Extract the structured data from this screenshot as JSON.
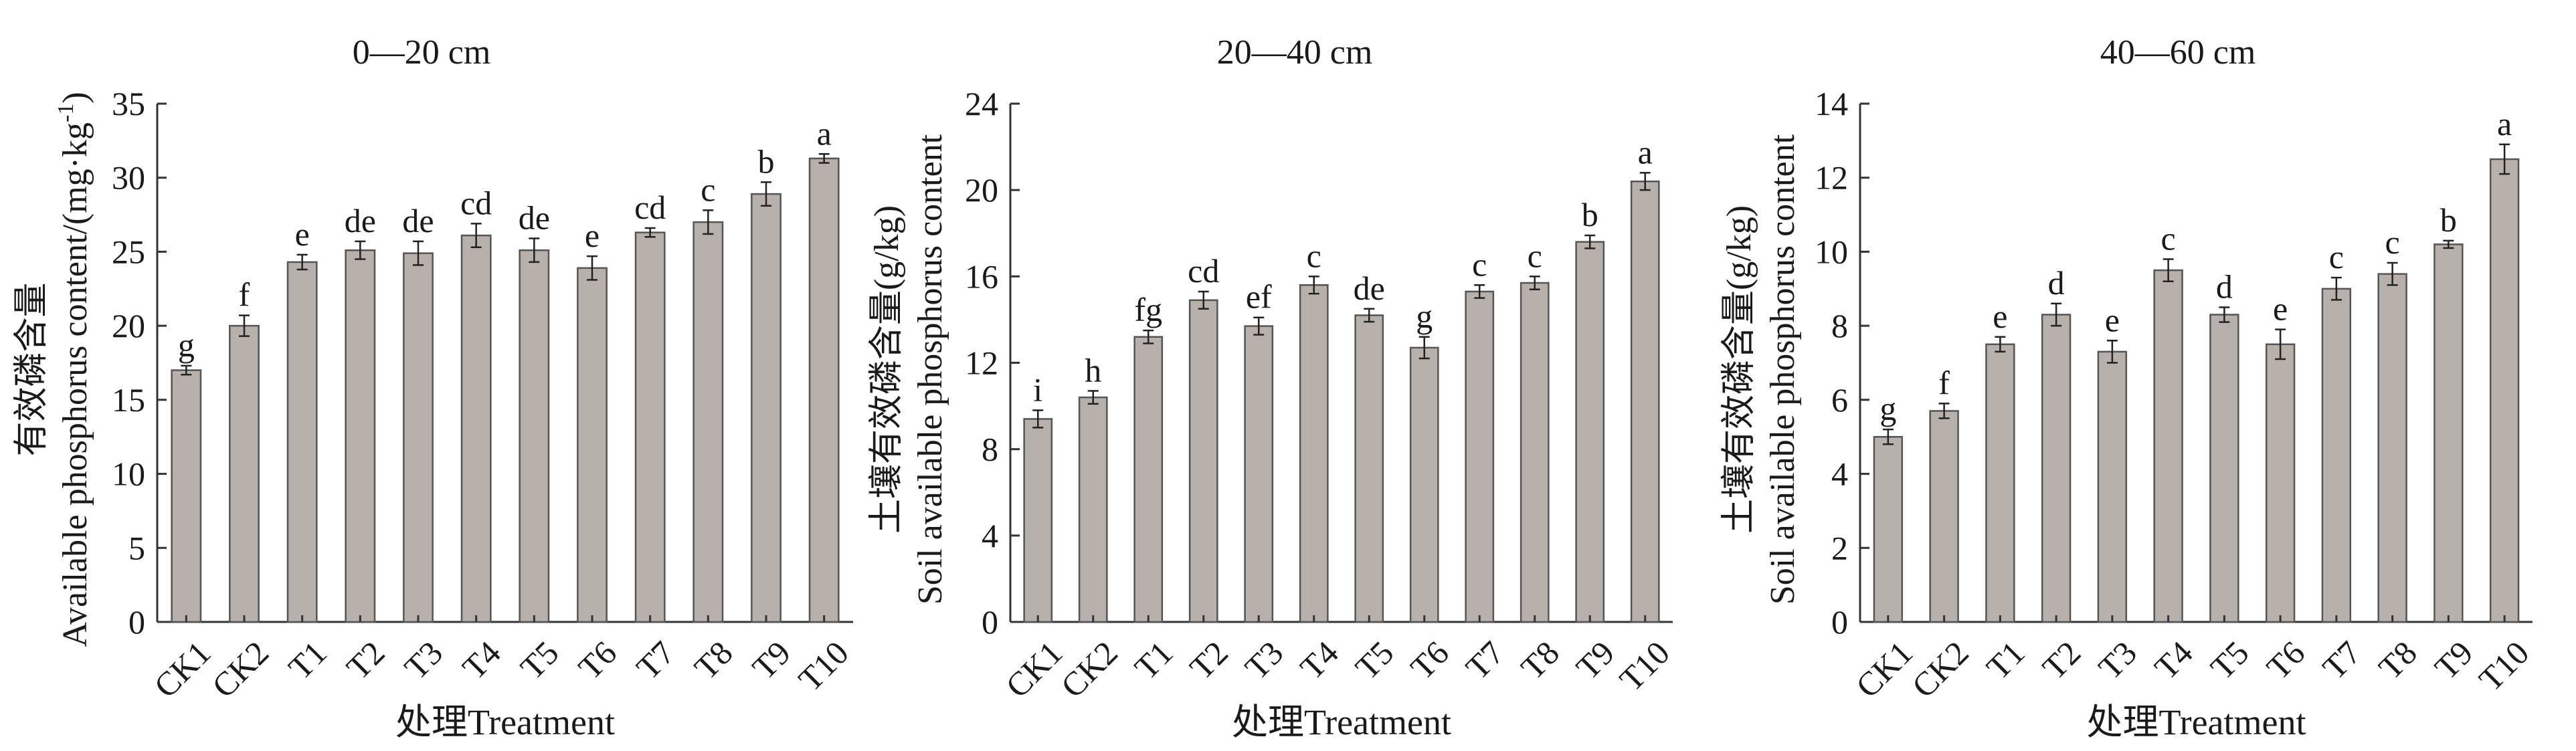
{
  "chart_data": [
    {
      "type": "bar",
      "title": "0—20 cm",
      "xlabel": "处理Treatment",
      "ylabel_cn": "有效磷含量",
      "ylabel_en": "Available phosphorus content/(mg·kg",
      "ylabel_sup": "-1",
      "ylabel_end": ")",
      "categories": [
        "CK1",
        "CK2",
        "T1",
        "T2",
        "T3",
        "T4",
        "T5",
        "T6",
        "T7",
        "T8",
        "T9",
        "T10"
      ],
      "values": [
        17.0,
        20.0,
        24.3,
        25.1,
        24.9,
        26.1,
        25.1,
        23.9,
        26.3,
        27.0,
        28.9,
        31.3
      ],
      "errors": [
        0.3,
        0.7,
        0.5,
        0.6,
        0.8,
        0.8,
        0.8,
        0.8,
        0.3,
        0.8,
        0.8,
        0.3
      ],
      "letters": [
        "g",
        "f",
        "e",
        "de",
        "de",
        "cd",
        "de",
        "e",
        "cd",
        "c",
        "b",
        "a"
      ],
      "ylim": [
        0,
        35
      ],
      "yticks": [
        0,
        5,
        10,
        15,
        20,
        25,
        30,
        35
      ],
      "ytick_labels": [
        "0",
        "5",
        "10",
        "15",
        "20",
        "25",
        "30",
        "35"
      ],
      "grid": false,
      "bar_color": "#b8b0ab"
    },
    {
      "type": "bar",
      "title": "20—40 cm",
      "xlabel": "处理Treatment",
      "ylabel_cn": "土壤有效磷含量(g/kg)",
      "ylabel_en": "Soil available phosphorus content",
      "categories": [
        "CK1",
        "CK2",
        "T1",
        "T2",
        "T3",
        "T4",
        "T5",
        "T6",
        "T7",
        "T8",
        "T9",
        "T10"
      ],
      "values": [
        9.4,
        10.4,
        13.2,
        14.9,
        13.7,
        15.6,
        14.2,
        12.7,
        15.3,
        15.7,
        17.6,
        20.4
      ],
      "errors": [
        0.4,
        0.3,
        0.3,
        0.4,
        0.4,
        0.4,
        0.3,
        0.5,
        0.3,
        0.3,
        0.3,
        0.4
      ],
      "letters": [
        "i",
        "h",
        "fg",
        "cd",
        "ef",
        "c",
        "de",
        "g",
        "c",
        "c",
        "b",
        "a"
      ],
      "ylim": [
        0,
        24
      ],
      "yticks": [
        0,
        4,
        8,
        12,
        16,
        20,
        24
      ],
      "ytick_labels": [
        "0",
        "4",
        "8",
        "12",
        "16",
        "20",
        "24"
      ],
      "grid": false,
      "bar_color": "#b8b0ab"
    },
    {
      "type": "bar",
      "title": "40—60 cm",
      "xlabel": "处理Treatment",
      "ylabel_cn": "土壤有效磷含量(g/kg)",
      "ylabel_en": "Soil available phosphorus content",
      "categories": [
        "CK1",
        "CK2",
        "T1",
        "T2",
        "T3",
        "T4",
        "T5",
        "T6",
        "T7",
        "T8",
        "T9",
        "T10"
      ],
      "values": [
        5.0,
        5.7,
        7.5,
        8.3,
        7.3,
        9.5,
        8.3,
        7.5,
        9.0,
        9.4,
        10.2,
        12.5
      ],
      "errors": [
        0.2,
        0.2,
        0.2,
        0.3,
        0.3,
        0.3,
        0.2,
        0.4,
        0.3,
        0.3,
        0.1,
        0.4
      ],
      "letters": [
        "g",
        "f",
        "e",
        "d",
        "e",
        "c",
        "d",
        "e",
        "c",
        "c",
        "b",
        "a"
      ],
      "ylim": [
        0,
        14
      ],
      "yticks": [
        0,
        2,
        4,
        6,
        8,
        10,
        12,
        14
      ],
      "ytick_labels": [
        "0",
        "2",
        "4",
        "6",
        "8",
        "10",
        "12",
        "14"
      ],
      "grid": false,
      "bar_color": "#b8b0ab"
    }
  ]
}
